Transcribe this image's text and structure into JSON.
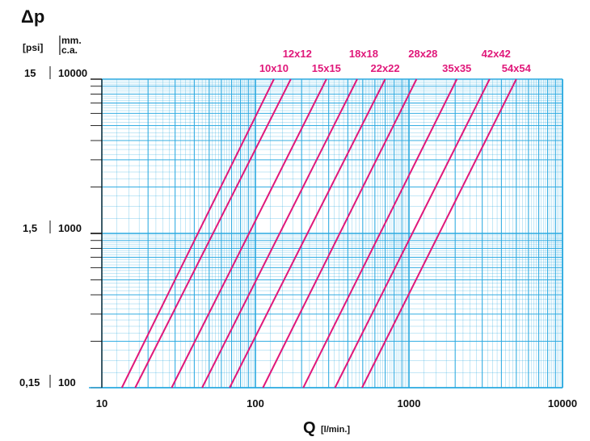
{
  "chart_data": {
    "type": "line",
    "title": "Δp",
    "xlabel_main": "Q",
    "xlabel_unit": "[l/min.]",
    "y_unit_left": "[psi]",
    "y_unit_right_line1": "mm.",
    "y_unit_right_line2": "c.a.",
    "x_scale": "log",
    "y_scale": "log",
    "xlim": [
      10,
      10000
    ],
    "ylim": [
      100,
      10000
    ],
    "x_ticks": [
      "10",
      "100",
      "1000",
      "10000"
    ],
    "y_ticks_psi": [
      "15",
      "1,5",
      "0,15"
    ],
    "y_ticks_mm": [
      "10000",
      "1000",
      "100"
    ],
    "grid": true,
    "colors": {
      "grid": "#29a9e0",
      "series": "#e0187a",
      "text": "#111111"
    },
    "series": [
      {
        "name": "10x10",
        "x": [
          13.5,
          132
        ],
        "y": [
          100,
          10000
        ]
      },
      {
        "name": "12x12",
        "x": [
          16.5,
          170
        ],
        "y": [
          100,
          10000
        ]
      },
      {
        "name": "15x15",
        "x": [
          28.5,
          290
        ],
        "y": [
          100,
          10000
        ]
      },
      {
        "name": "18x18",
        "x": [
          45,
          460
        ],
        "y": [
          100,
          10000
        ]
      },
      {
        "name": "22x22",
        "x": [
          68,
          700
        ],
        "y": [
          100,
          10000
        ]
      },
      {
        "name": "28x28",
        "x": [
          112,
          1120
        ],
        "y": [
          100,
          10000
        ]
      },
      {
        "name": "35x35",
        "x": [
          205,
          2050
        ],
        "y": [
          100,
          10000
        ]
      },
      {
        "name": "42x42",
        "x": [
          330,
          3350
        ],
        "y": [
          100,
          10000
        ]
      },
      {
        "name": "54x54",
        "x": [
          495,
          5000
        ],
        "y": [
          100,
          10000
        ]
      }
    ]
  }
}
